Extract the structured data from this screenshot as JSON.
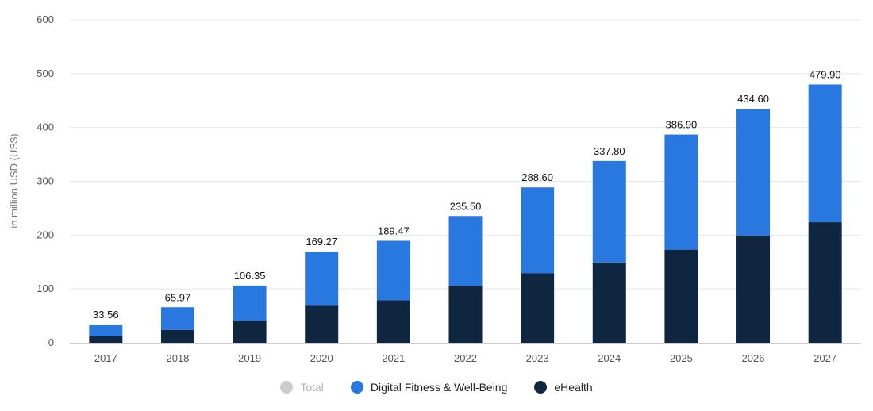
{
  "chart_data": {
    "type": "bar",
    "stacked": true,
    "ylabel": "in million USD (US$)",
    "xlabel": "",
    "ylim": [
      0,
      600
    ],
    "yticks": [
      "0",
      "100",
      "200",
      "300",
      "400",
      "500",
      "600"
    ],
    "grid": true,
    "categories": [
      "2017",
      "2018",
      "2019",
      "2020",
      "2021",
      "2022",
      "2023",
      "2024",
      "2025",
      "2026",
      "2027"
    ],
    "series": [
      {
        "name": "eHealth",
        "color": "#0f2640",
        "values": [
          12,
          24,
          41,
          69,
          79,
          106,
          129,
          149,
          173,
          199,
          224
        ]
      },
      {
        "name": "Digital Fitness & Well-Being",
        "color": "#2878e0",
        "values": [
          21.56,
          41.97,
          65.35,
          100.27,
          110.47,
          129.5,
          159.6,
          188.8,
          213.9,
          235.6,
          255.9
        ]
      }
    ],
    "totals": [
      "33.56",
      "65.97",
      "106.35",
      "169.27",
      "189.47",
      "235.50",
      "288.60",
      "337.80",
      "386.90",
      "434.60",
      "479.90"
    ],
    "legend": [
      {
        "name": "Total",
        "color": "#cccccc",
        "active": false
      },
      {
        "name": "Digital Fitness & Well-Being",
        "color": "#2878e0",
        "active": true
      },
      {
        "name": "eHealth",
        "color": "#0f2640",
        "active": true
      }
    ],
    "legend_position": "bottom"
  }
}
